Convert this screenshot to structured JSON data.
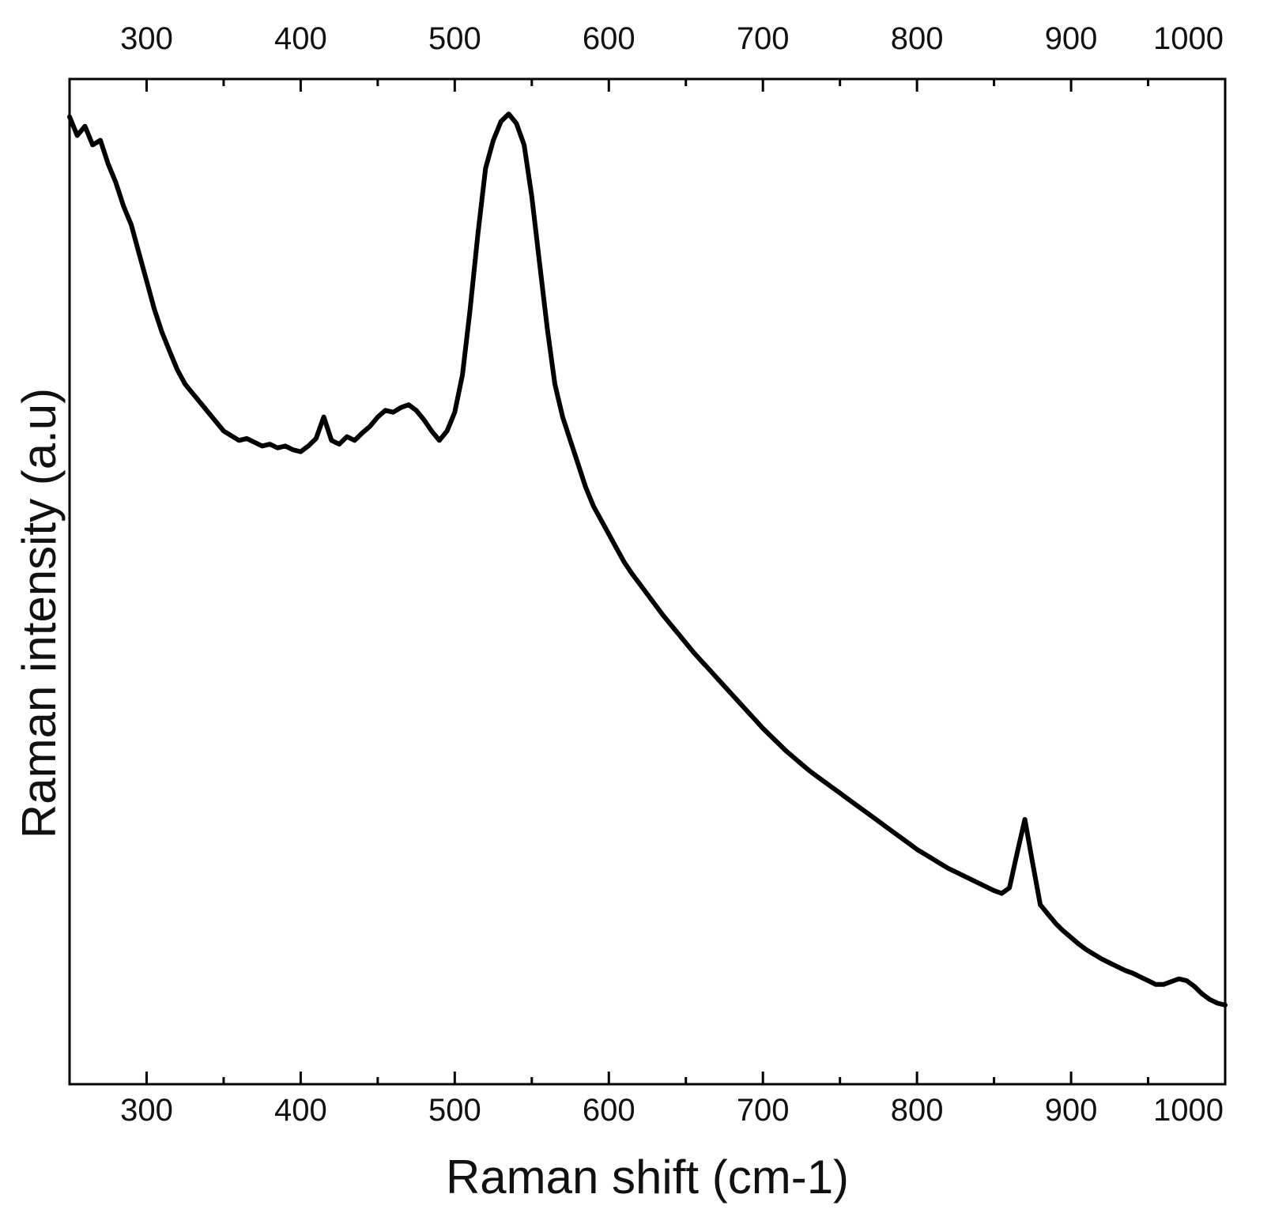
{
  "chart_data": {
    "type": "line",
    "title": "",
    "xlabel": "Raman shift (cm-1)",
    "ylabel": "Raman intensity (a.u)",
    "xlim": [
      250,
      1000
    ],
    "ylim": [
      0,
      1
    ],
    "x_ticks": [
      300,
      400,
      500,
      600,
      700,
      800,
      900,
      1000
    ],
    "x_tick_labels": [
      "300",
      "400",
      "500",
      "600",
      "700",
      "800",
      "900",
      "1000"
    ],
    "secondary_x_axis": "top, same ticks",
    "y_tick_labels": [],
    "grid": false,
    "legend": "none",
    "line_color": "#000000",
    "series": [
      {
        "x": [
          250,
          255,
          260,
          265,
          270,
          275,
          280,
          285,
          290,
          295,
          300,
          305,
          310,
          315,
          320,
          325,
          330,
          335,
          340,
          345,
          350,
          355,
          360,
          365,
          370,
          375,
          380,
          385,
          390,
          395,
          400,
          405,
          410,
          415,
          420,
          425,
          430,
          435,
          440,
          445,
          450,
          455,
          460,
          465,
          470,
          475,
          480,
          485,
          490,
          495,
          500,
          505,
          510,
          515,
          520,
          525,
          530,
          535,
          540,
          545,
          550,
          555,
          560,
          565,
          570,
          575,
          580,
          585,
          590,
          595,
          600,
          605,
          610,
          615,
          620,
          625,
          630,
          635,
          640,
          645,
          650,
          655,
          660,
          665,
          670,
          675,
          680,
          685,
          690,
          695,
          700,
          705,
          710,
          715,
          720,
          725,
          730,
          735,
          740,
          745,
          750,
          755,
          760,
          765,
          770,
          775,
          780,
          785,
          790,
          795,
          800,
          805,
          810,
          815,
          820,
          825,
          830,
          835,
          840,
          845,
          850,
          855,
          860,
          865,
          870,
          875,
          880,
          885,
          890,
          895,
          900,
          905,
          910,
          915,
          920,
          925,
          930,
          935,
          940,
          945,
          950,
          955,
          960,
          965,
          970,
          975,
          980,
          985,
          990,
          995,
          1000
        ],
        "y": [
          0.985,
          0.965,
          0.975,
          0.955,
          0.96,
          0.935,
          0.915,
          0.89,
          0.87,
          0.84,
          0.81,
          0.78,
          0.755,
          0.735,
          0.715,
          0.7,
          0.69,
          0.68,
          0.67,
          0.66,
          0.65,
          0.645,
          0.64,
          0.642,
          0.638,
          0.634,
          0.636,
          0.632,
          0.634,
          0.63,
          0.628,
          0.634,
          0.642,
          0.665,
          0.64,
          0.636,
          0.644,
          0.64,
          0.648,
          0.655,
          0.665,
          0.672,
          0.67,
          0.675,
          0.678,
          0.672,
          0.662,
          0.65,
          0.64,
          0.65,
          0.67,
          0.71,
          0.78,
          0.86,
          0.93,
          0.96,
          0.98,
          0.988,
          0.978,
          0.955,
          0.9,
          0.83,
          0.76,
          0.7,
          0.665,
          0.64,
          0.615,
          0.59,
          0.57,
          0.555,
          0.54,
          0.525,
          0.51,
          0.498,
          0.487,
          0.476,
          0.465,
          0.454,
          0.444,
          0.434,
          0.424,
          0.414,
          0.405,
          0.396,
          0.387,
          0.378,
          0.369,
          0.36,
          0.351,
          0.342,
          0.333,
          0.325,
          0.317,
          0.309,
          0.302,
          0.295,
          0.288,
          0.282,
          0.276,
          0.27,
          0.264,
          0.258,
          0.252,
          0.246,
          0.24,
          0.234,
          0.228,
          0.222,
          0.216,
          0.21,
          0.204,
          0.199,
          0.194,
          0.189,
          0.184,
          0.18,
          0.176,
          0.172,
          0.168,
          0.164,
          0.16,
          0.157,
          0.163,
          0.2,
          0.236,
          0.19,
          0.145,
          0.135,
          0.125,
          0.117,
          0.11,
          0.103,
          0.097,
          0.092,
          0.087,
          0.083,
          0.079,
          0.075,
          0.072,
          0.068,
          0.064,
          0.06,
          0.06,
          0.063,
          0.066,
          0.064,
          0.058,
          0.05,
          0.044,
          0.04,
          0.038
        ]
      }
    ]
  }
}
